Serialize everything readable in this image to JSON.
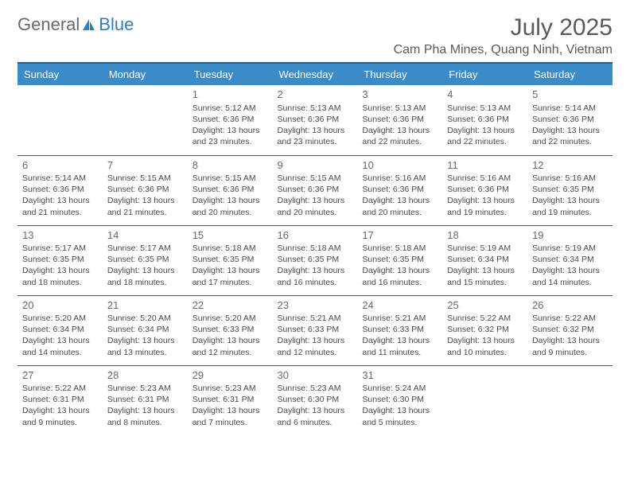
{
  "logo": {
    "text_general": "General",
    "text_blue": "Blue"
  },
  "title": "July 2025",
  "location": "Cam Pha Mines, Quang Ninh, Vietnam",
  "colors": {
    "header_bg": "#3a8cc9",
    "header_border": "#1f5f8a",
    "text_muted": "#6a6a6a",
    "text_body": "#4a4a4a",
    "logo_blue": "#2f7fb8"
  },
  "day_headers": [
    "Sunday",
    "Monday",
    "Tuesday",
    "Wednesday",
    "Thursday",
    "Friday",
    "Saturday"
  ],
  "weeks": [
    [
      null,
      null,
      {
        "n": "1",
        "sr": "5:12 AM",
        "ss": "6:36 PM",
        "dl": "13 hours and 23 minutes."
      },
      {
        "n": "2",
        "sr": "5:13 AM",
        "ss": "6:36 PM",
        "dl": "13 hours and 23 minutes."
      },
      {
        "n": "3",
        "sr": "5:13 AM",
        "ss": "6:36 PM",
        "dl": "13 hours and 22 minutes."
      },
      {
        "n": "4",
        "sr": "5:13 AM",
        "ss": "6:36 PM",
        "dl": "13 hours and 22 minutes."
      },
      {
        "n": "5",
        "sr": "5:14 AM",
        "ss": "6:36 PM",
        "dl": "13 hours and 22 minutes."
      }
    ],
    [
      {
        "n": "6",
        "sr": "5:14 AM",
        "ss": "6:36 PM",
        "dl": "13 hours and 21 minutes."
      },
      {
        "n": "7",
        "sr": "5:15 AM",
        "ss": "6:36 PM",
        "dl": "13 hours and 21 minutes."
      },
      {
        "n": "8",
        "sr": "5:15 AM",
        "ss": "6:36 PM",
        "dl": "13 hours and 20 minutes."
      },
      {
        "n": "9",
        "sr": "5:15 AM",
        "ss": "6:36 PM",
        "dl": "13 hours and 20 minutes."
      },
      {
        "n": "10",
        "sr": "5:16 AM",
        "ss": "6:36 PM",
        "dl": "13 hours and 20 minutes."
      },
      {
        "n": "11",
        "sr": "5:16 AM",
        "ss": "6:36 PM",
        "dl": "13 hours and 19 minutes."
      },
      {
        "n": "12",
        "sr": "5:16 AM",
        "ss": "6:35 PM",
        "dl": "13 hours and 19 minutes."
      }
    ],
    [
      {
        "n": "13",
        "sr": "5:17 AM",
        "ss": "6:35 PM",
        "dl": "13 hours and 18 minutes."
      },
      {
        "n": "14",
        "sr": "5:17 AM",
        "ss": "6:35 PM",
        "dl": "13 hours and 18 minutes."
      },
      {
        "n": "15",
        "sr": "5:18 AM",
        "ss": "6:35 PM",
        "dl": "13 hours and 17 minutes."
      },
      {
        "n": "16",
        "sr": "5:18 AM",
        "ss": "6:35 PM",
        "dl": "13 hours and 16 minutes."
      },
      {
        "n": "17",
        "sr": "5:18 AM",
        "ss": "6:35 PM",
        "dl": "13 hours and 16 minutes."
      },
      {
        "n": "18",
        "sr": "5:19 AM",
        "ss": "6:34 PM",
        "dl": "13 hours and 15 minutes."
      },
      {
        "n": "19",
        "sr": "5:19 AM",
        "ss": "6:34 PM",
        "dl": "13 hours and 14 minutes."
      }
    ],
    [
      {
        "n": "20",
        "sr": "5:20 AM",
        "ss": "6:34 PM",
        "dl": "13 hours and 14 minutes."
      },
      {
        "n": "21",
        "sr": "5:20 AM",
        "ss": "6:34 PM",
        "dl": "13 hours and 13 minutes."
      },
      {
        "n": "22",
        "sr": "5:20 AM",
        "ss": "6:33 PM",
        "dl": "13 hours and 12 minutes."
      },
      {
        "n": "23",
        "sr": "5:21 AM",
        "ss": "6:33 PM",
        "dl": "13 hours and 12 minutes."
      },
      {
        "n": "24",
        "sr": "5:21 AM",
        "ss": "6:33 PM",
        "dl": "13 hours and 11 minutes."
      },
      {
        "n": "25",
        "sr": "5:22 AM",
        "ss": "6:32 PM",
        "dl": "13 hours and 10 minutes."
      },
      {
        "n": "26",
        "sr": "5:22 AM",
        "ss": "6:32 PM",
        "dl": "13 hours and 9 minutes."
      }
    ],
    [
      {
        "n": "27",
        "sr": "5:22 AM",
        "ss": "6:31 PM",
        "dl": "13 hours and 9 minutes."
      },
      {
        "n": "28",
        "sr": "5:23 AM",
        "ss": "6:31 PM",
        "dl": "13 hours and 8 minutes."
      },
      {
        "n": "29",
        "sr": "5:23 AM",
        "ss": "6:31 PM",
        "dl": "13 hours and 7 minutes."
      },
      {
        "n": "30",
        "sr": "5:23 AM",
        "ss": "6:30 PM",
        "dl": "13 hours and 6 minutes."
      },
      {
        "n": "31",
        "sr": "5:24 AM",
        "ss": "6:30 PM",
        "dl": "13 hours and 5 minutes."
      },
      null,
      null
    ]
  ],
  "labels": {
    "sunrise_prefix": "Sunrise: ",
    "sunset_prefix": "Sunset: ",
    "daylight_prefix": "Daylight: "
  }
}
